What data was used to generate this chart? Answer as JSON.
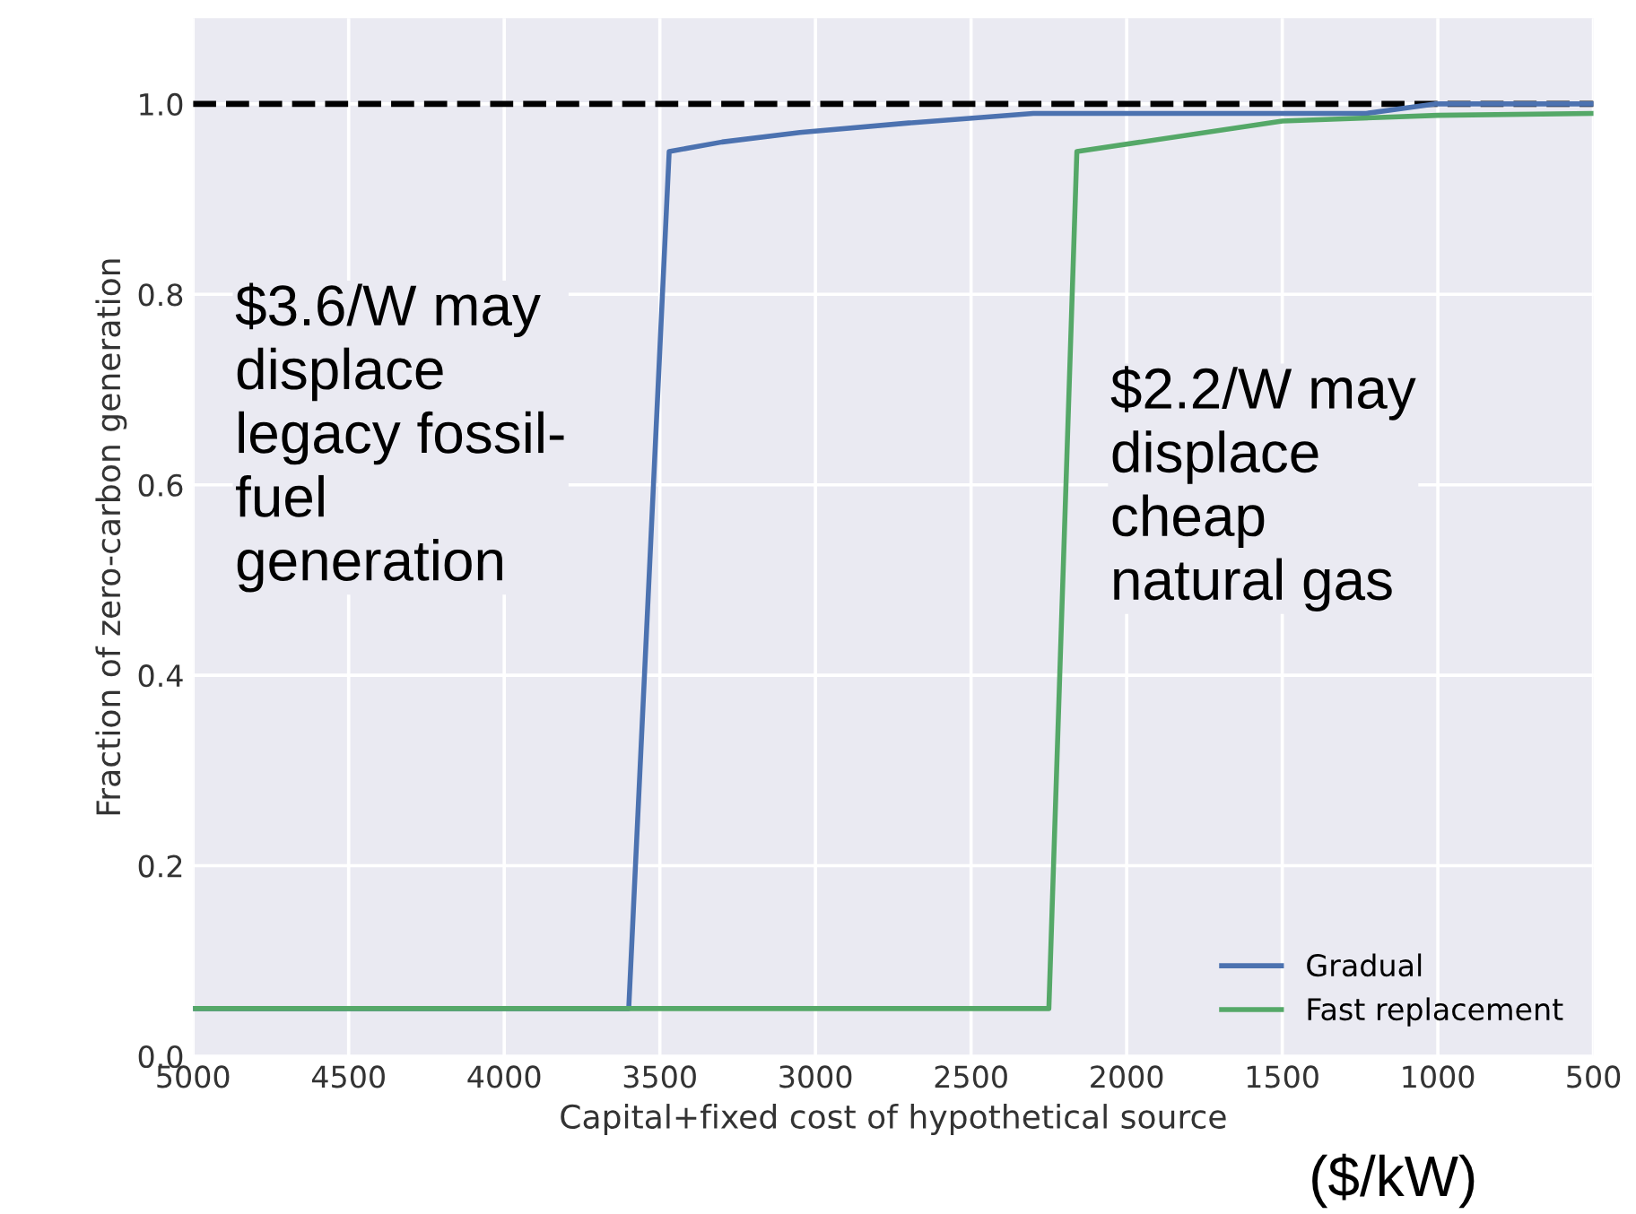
{
  "chart_data": {
    "type": "line",
    "xlabel": "Capital+fixed cost of hypothetical source",
    "ylabel": "Fraction of zero-carbon generation",
    "series": [
      {
        "name": "Gradual",
        "color": "#4c72b0",
        "x": [
          5000,
          3600,
          3470,
          3300,
          3050,
          2700,
          2300,
          1800,
          1230,
          1010,
          500
        ],
        "values": [
          0.05,
          0.05,
          0.95,
          0.96,
          0.97,
          0.98,
          0.99,
          0.99,
          0.99,
          1.0,
          1.0
        ]
      },
      {
        "name": "Fast replacement",
        "color": "#55a868",
        "x": [
          5000,
          2250,
          2160,
          1500,
          1000,
          500
        ],
        "values": [
          0.05,
          0.05,
          0.95,
          0.982,
          0.988,
          0.99
        ]
      }
    ],
    "xlim": [
      5000,
      500
    ],
    "ylim": [
      0,
      1.09
    ],
    "xticks": [
      5000,
      4500,
      4000,
      3500,
      3000,
      2500,
      2000,
      1500,
      1000,
      500
    ],
    "yticks": [
      {
        "value": 0,
        "label": "0.0"
      },
      0.2,
      0.4,
      0.6,
      0.8,
      {
        "value": 1,
        "label": "1.0"
      }
    ],
    "ref_lines": [
      {
        "axis": "y",
        "value": 1.0,
        "color": "#000000",
        "line_style": "dashed"
      }
    ],
    "annotations": [
      "$3.6/W may\ndisplace\nlegacy fossil-\nfuel\ngeneration",
      "$2.2/W may\ndisplace\ncheap\nnatural gas",
      "($/kW)"
    ],
    "grid": true,
    "legend": "bottom right",
    "line_style": "solid",
    "marker": "none"
  }
}
